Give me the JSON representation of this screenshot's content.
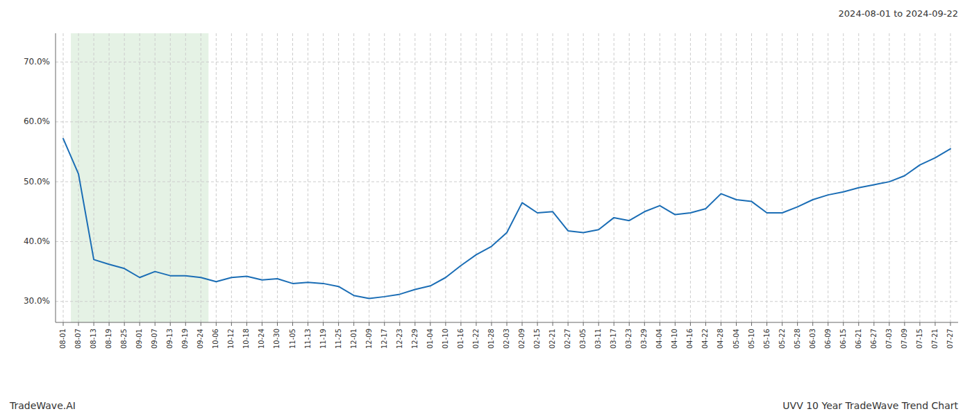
{
  "chart_data": {
    "type": "line",
    "title": "UVV 10 Year TradeWave Trend Chart",
    "subtitle": "2024-08-01 to 2024-09-22",
    "annotations": [
      "TradeWave.AI"
    ],
    "categories": [
      "08-01",
      "08-07",
      "08-13",
      "08-19",
      "08-25",
      "09-01",
      "09-07",
      "09-13",
      "09-19",
      "09-24",
      "10-06",
      "10-12",
      "10-18",
      "10-24",
      "10-30",
      "11-05",
      "11-13",
      "11-19",
      "11-25",
      "12-01",
      "12-09",
      "12-17",
      "12-23",
      "12-29",
      "01-04",
      "01-10",
      "01-16",
      "01-22",
      "01-28",
      "02-03",
      "02-09",
      "02-15",
      "02-21",
      "02-27",
      "03-05",
      "03-11",
      "03-17",
      "03-23",
      "03-29",
      "04-04",
      "04-10",
      "04-16",
      "04-22",
      "04-28",
      "05-04",
      "05-10",
      "05-16",
      "05-22",
      "05-28",
      "06-03",
      "06-09",
      "06-15",
      "06-21",
      "06-27",
      "07-03",
      "07-09",
      "07-15",
      "07-21",
      "07-27"
    ],
    "values": [
      0.572,
      0.513,
      0.37,
      0.362,
      0.355,
      0.34,
      0.35,
      0.343,
      0.343,
      0.34,
      0.333,
      0.34,
      0.342,
      0.336,
      0.338,
      0.33,
      0.332,
      0.33,
      0.325,
      0.31,
      0.305,
      0.308,
      0.312,
      0.32,
      0.326,
      0.34,
      0.36,
      0.378,
      0.392,
      0.415,
      0.465,
      0.448,
      0.45,
      0.418,
      0.415,
      0.42,
      0.44,
      0.435,
      0.45,
      0.46,
      0.445,
      0.448,
      0.455,
      0.48,
      0.47,
      0.467,
      0.448,
      0.448,
      0.458,
      0.47,
      0.478,
      0.483,
      0.49,
      0.495,
      0.5,
      0.51,
      0.528,
      0.54,
      0.555
    ],
    "color": "#1a6db5",
    "ylim": [
      0.265,
      0.748
    ],
    "yticks": [
      {
        "value": 0.3,
        "label": "30.0%"
      },
      {
        "value": 0.4,
        "label": "40.0%"
      },
      {
        "value": 0.5,
        "label": "50.0%"
      },
      {
        "value": 0.6,
        "label": "60.0%"
      },
      {
        "value": 0.7,
        "label": "70.0%"
      }
    ],
    "grid": true,
    "shaded_region": {
      "from": "08-07",
      "to": "09-24",
      "color": "#d4ead4"
    }
  }
}
